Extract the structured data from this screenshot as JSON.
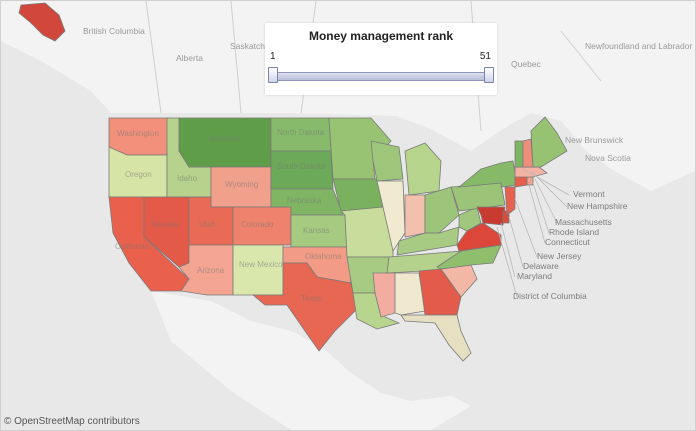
{
  "legend": {
    "title": "Money management rank",
    "min_label": "1",
    "max_label": "51",
    "range_selected": [
      1,
      51
    ]
  },
  "attribution": "© OpenStreetMap contributors",
  "colors": {
    "rank_best": "#5f9d49",
    "rank_mid": "#f2efd8",
    "rank_worst": "#d83b33",
    "background": "#e9e9e9"
  },
  "map_labels": {
    "british_columbia": "British Columbia",
    "alberta": "Alberta",
    "saskatchewan": "Saskatch",
    "quebec": "Quebec",
    "newfoundland": "Newfoundland and Labrador",
    "new_brunswick": "New Brunswick",
    "nova_scotia": "Nova Scotia"
  },
  "callouts": {
    "vermont": "Vermont",
    "new_hampshire": "New Hampshire",
    "massachusetts": "Massachusetts",
    "rhode_island": "Rhode Island",
    "connecticut": "Connecticut",
    "new_jersey": "New Jersey",
    "delaware": "Delaware",
    "maryland": "Maryland",
    "district_of_columbia": "District of Columbia"
  },
  "state_labels": {
    "washington": "Washington",
    "oregon": "Oregon",
    "montana": "Montana",
    "idaho": "Idaho",
    "wyoming": "Wyoming",
    "nevada": "Nevada",
    "utah": "Utah",
    "colorado": "Colorado",
    "california": "California",
    "arizona": "Arizona",
    "new_mexico": "New Mexico",
    "texas": "Texas",
    "north_dakota": "North Dakota",
    "south_dakota": "South Dakota",
    "nebraska": "Nebraska",
    "kansas": "Kansas",
    "oklahoma": "Oklahoma"
  }
}
